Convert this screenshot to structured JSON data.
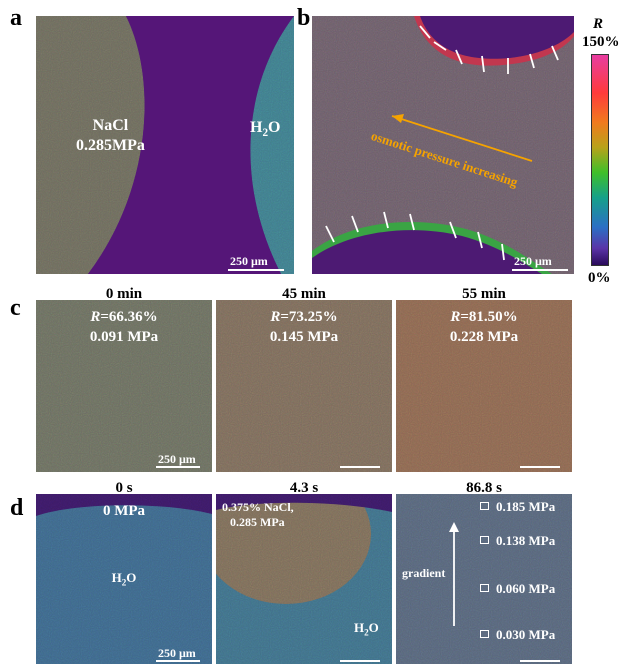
{
  "panels": {
    "a": {
      "label": "a",
      "left_text": [
        "NaCl",
        "0.285MPa"
      ],
      "right_text": "H2O",
      "scale_bar": "250 μm"
    },
    "b": {
      "label": "b",
      "annotation": "osmotic pressure increasing",
      "scale_bar": "250 μm"
    },
    "c": {
      "label": "c",
      "frames": [
        {
          "time": "0 min",
          "r": "=66.36%",
          "mpa": "0.091 MPa",
          "scale_bar": "250 μm"
        },
        {
          "time": "45 min",
          "r": "=73.25%",
          "mpa": "0.145 MPa",
          "scale_bar": ""
        },
        {
          "time": "55 min",
          "r": "=81.50%",
          "mpa": "0.228 MPa",
          "scale_bar": ""
        }
      ]
    },
    "d": {
      "label": "d",
      "frames": [
        {
          "time": "0 s",
          "top_text": "0 MPa",
          "center_text": "H2O",
          "scale_bar": "250 μm"
        },
        {
          "time": "4.3 s",
          "top_text": [
            "0.375% NaCl,",
            "0.285 MPa"
          ],
          "bottom_text": "H2O"
        },
        {
          "time": "86.8 s",
          "gradient_label": "gradient",
          "points": [
            "0.185 MPa",
            "0.138 MPa",
            "0.060 MPa",
            "0.030 MPa"
          ]
        }
      ]
    }
  },
  "colorbar": {
    "title": "R",
    "max": "150%",
    "min": "0%"
  }
}
